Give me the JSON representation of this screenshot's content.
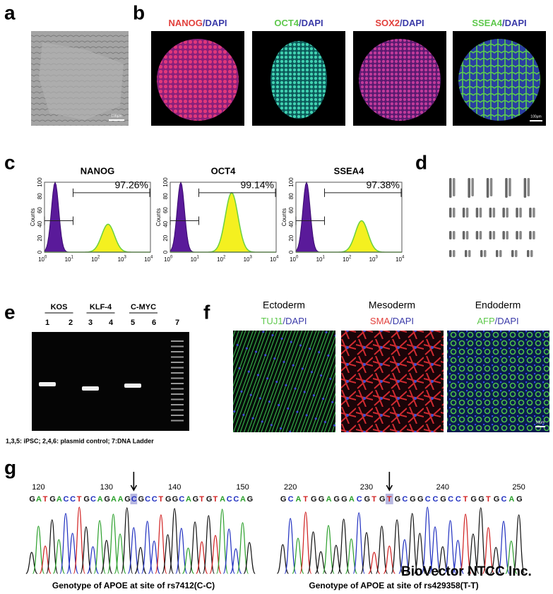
{
  "labels": [
    "a",
    "b",
    "c",
    "d",
    "e",
    "f",
    "g"
  ],
  "panel_b": {
    "titles": [
      {
        "marker": "NANOG",
        "stain": "/DAPI",
        "color": "#e2403c"
      },
      {
        "marker": "OCT4",
        "stain": "/DAPI",
        "color": "#5ec84c"
      },
      {
        "marker": "SOX2",
        "stain": "/DAPI",
        "color": "#e2403c"
      },
      {
        "marker": "SSEA4",
        "stain": "/DAPI",
        "color": "#5ec84c"
      }
    ],
    "scale_bar": "100μm"
  },
  "panel_a": {
    "scale_bar": "100μm"
  },
  "panel_c": {
    "plots": [
      {
        "title": "NANOG",
        "gate": "97.26%"
      },
      {
        "title": "OCT4",
        "gate": "99.14%"
      },
      {
        "title": "SSEA4",
        "gate": "97.38%"
      }
    ],
    "y_label": "Counts",
    "y_ticks": [
      "0",
      "20",
      "40",
      "60",
      "80",
      "100"
    ],
    "x_ticks": [
      {
        "base": "10",
        "exp": "0"
      },
      {
        "base": "10",
        "exp": "1"
      },
      {
        "base": "10",
        "exp": "2"
      },
      {
        "base": "10",
        "exp": "3"
      },
      {
        "base": "10",
        "exp": "4"
      }
    ]
  },
  "panel_e": {
    "groups": [
      "KOS",
      "KLF-4",
      "C-MYC"
    ],
    "lanes": [
      "1",
      "2",
      "3",
      "4",
      "5",
      "6",
      "7"
    ],
    "caption": "1,3,5: iPSC; 2,4,6: plasmid control; 7:DNA Ladder"
  },
  "panel_f": {
    "columns": [
      {
        "layer": "Ectoderm",
        "marker": "TUJ1",
        "stain": "/DAPI",
        "color": "#5ec84c"
      },
      {
        "layer": "Mesoderm",
        "marker": "SMA",
        "stain": "/DAPI",
        "color": "#e2403c"
      },
      {
        "layer": "Endoderm",
        "marker": "AFP",
        "stain": "/DAPI",
        "color": "#5ec84c"
      }
    ],
    "scale_bar": "50μm"
  },
  "panel_g": {
    "traces": [
      {
        "positions": [
          "120",
          "130",
          "140",
          "150"
        ],
        "sequence": "GATGACCTGCAGAAGCGCCTGGCAGTGTACCAG",
        "caption": "Genotype of APOE at site of rs7412(C-C)"
      },
      {
        "positions": [
          "220",
          "230",
          "240",
          "250"
        ],
        "sequence": "GCATGGAGGACGTGTGCGGCCGCCTGGTGCAG",
        "caption": "Genotype of APOE at site of rs429358(T-T)"
      }
    ],
    "watermark": "BioVector NTCC Inc."
  }
}
